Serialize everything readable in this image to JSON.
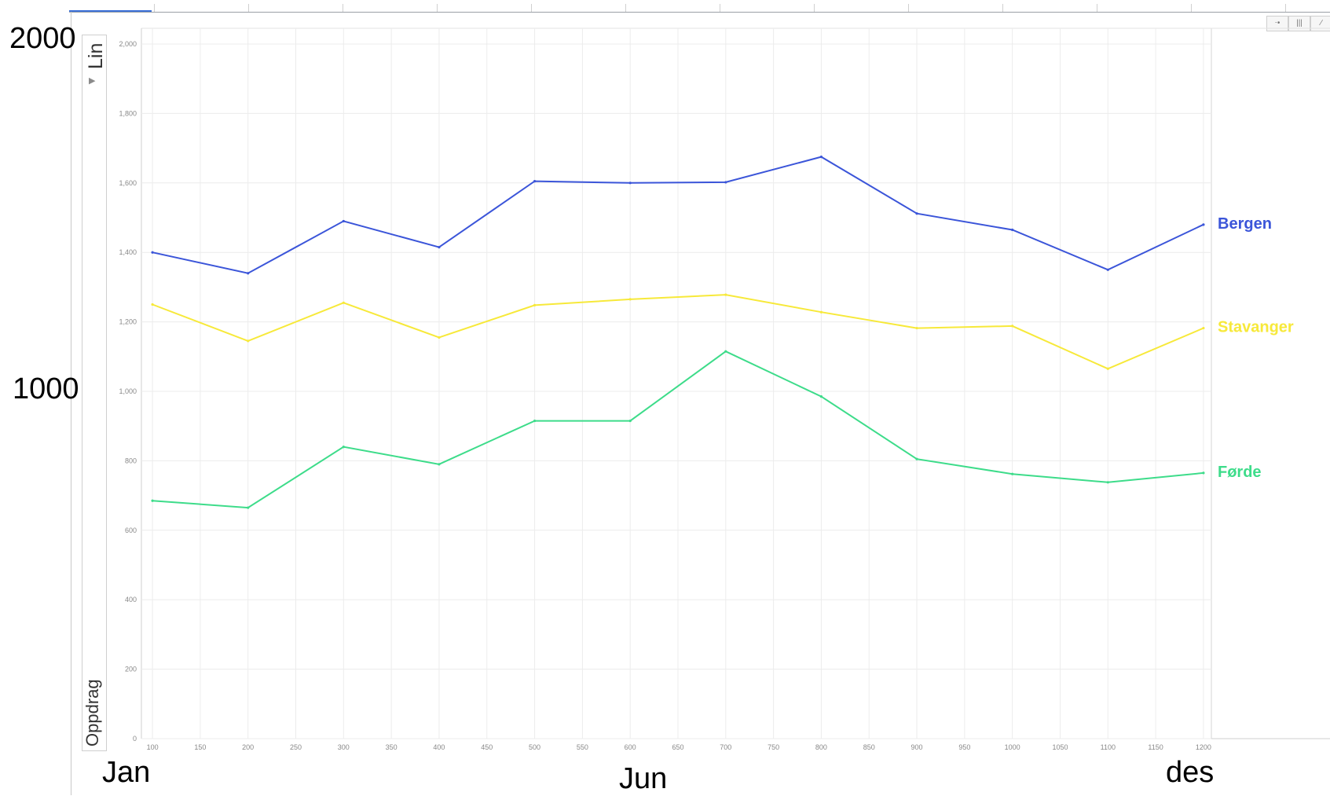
{
  "overlay": {
    "y_top_label": "2000",
    "y_mid_label": "1000",
    "x_labels": [
      "Jan",
      "Jun",
      "des"
    ]
  },
  "side_panel": {
    "top_label": "Lin",
    "bottom_label": "Oppdrag"
  },
  "toolbar": {
    "icons": [
      "bubble-chart-icon",
      "bar-chart-icon",
      "line-chart-icon"
    ]
  },
  "chart_data": {
    "type": "line",
    "x": [
      100,
      200,
      300,
      400,
      500,
      600,
      700,
      800,
      900,
      1000,
      1100,
      1200
    ],
    "x_ticks": [
      100,
      150,
      200,
      250,
      300,
      350,
      400,
      450,
      500,
      550,
      600,
      650,
      700,
      750,
      800,
      850,
      900,
      950,
      1000,
      1050,
      1100,
      1150,
      1200
    ],
    "x_tick_labels": [
      "100",
      "150",
      "200",
      "250",
      "300",
      "350",
      "400",
      "450",
      "500",
      "550",
      "600",
      "650",
      "700",
      "750",
      "800",
      "850",
      "900",
      "950",
      "1000",
      "1050",
      "1100",
      "1150",
      "1200"
    ],
    "y_ticks": [
      0,
      200,
      400,
      600,
      800,
      1000,
      1200,
      1400,
      1600,
      1800,
      2000
    ],
    "y_tick_labels": [
      "0",
      "200",
      "400",
      "600",
      "800",
      "1,000",
      "1,200",
      "1,400",
      "1,600",
      "1,800",
      "2,000"
    ],
    "xlim": [
      95,
      1205
    ],
    "ylim": [
      0,
      2000
    ],
    "grid": true,
    "series": [
      {
        "name": "Bergen",
        "color": "#3b55d9",
        "values": [
          1400,
          1340,
          1490,
          1415,
          1605,
          1600,
          1602,
          1675,
          1512,
          1465,
          1350,
          1480
        ]
      },
      {
        "name": "Stavanger",
        "color": "#f7e93a",
        "values": [
          1250,
          1145,
          1255,
          1155,
          1248,
          1265,
          1278,
          1228,
          1182,
          1188,
          1065,
          1182
        ]
      },
      {
        "name": "Førde",
        "color": "#3ddc8a",
        "values": [
          685,
          665,
          840,
          790,
          915,
          915,
          1115,
          985,
          805,
          762,
          738,
          765
        ]
      }
    ]
  }
}
